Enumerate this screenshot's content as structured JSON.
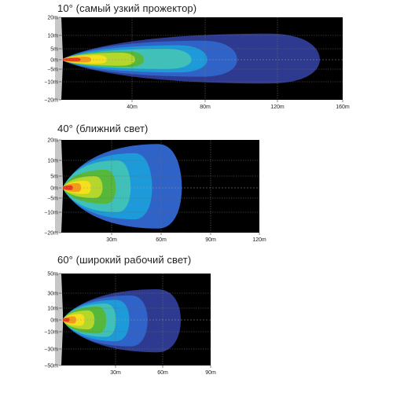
{
  "colors": {
    "background": "#000000",
    "housing": "#c7c7c7",
    "grid": "#6b6b6b",
    "center_line": "#9a9a9a",
    "intensity_levels": [
      "#2e3a8f",
      "#2f63c7",
      "#1d9ad9",
      "#3fc0b8",
      "#55b83a",
      "#b5d62a",
      "#f4e01c",
      "#f39a1a",
      "#e8331d"
    ]
  },
  "chart_data": [
    {
      "type": "heatmap",
      "title": "10° (самый узкий прожектор)",
      "xlabel": "",
      "ylabel": "",
      "x_ticks": [
        "40m",
        "80m",
        "120m",
        "160m"
      ],
      "y_ticks": [
        "20m",
        "10m",
        "5m",
        "0m",
        "−5m",
        "−10m",
        "−20m"
      ],
      "xlim": [
        0,
        160
      ],
      "grid": true,
      "contours_reach_m": [
        147,
        100,
        83,
        74,
        47,
        42,
        26,
        17,
        11
      ],
      "contours_halfwidth_m": [
        11,
        8,
        6.3,
        5,
        3.8,
        3.2,
        2.1,
        1.4,
        0.8
      ]
    },
    {
      "type": "heatmap",
      "title": "40° (ближний свет)",
      "xlabel": "",
      "ylabel": "",
      "x_ticks": [
        "30m",
        "60m",
        "90m",
        "120m"
      ],
      "y_ticks": [
        "20m",
        "10m",
        "5m",
        "0m",
        "−5m",
        "−10m",
        "−20m"
      ],
      "xlim": [
        0,
        120
      ],
      "grid": true,
      "contours_reach_m": [
        106,
        73,
        55,
        42,
        33,
        25,
        18,
        12,
        7
      ],
      "contours_halfwidth_m": [
        24,
        18,
        13.5,
        10,
        7,
        5,
        3,
        2,
        1
      ]
    },
    {
      "type": "heatmap",
      "title": "60° (широкий рабочий свет)",
      "xlabel": "",
      "ylabel": "",
      "x_ticks": [
        "30m",
        "60m",
        "90m"
      ],
      "y_ticks": [
        "50m",
        "30m",
        "10m",
        "0m",
        "−10m",
        "−30m",
        "−50m"
      ],
      "xlim": [
        0,
        90
      ],
      "grid": true,
      "contours_reach_m": [
        72,
        52,
        41,
        33,
        27,
        20,
        14,
        9,
        5
      ],
      "contours_halfwidth_m": [
        34,
        27,
        21,
        16,
        12,
        8,
        5,
        3,
        1.5
      ]
    }
  ]
}
